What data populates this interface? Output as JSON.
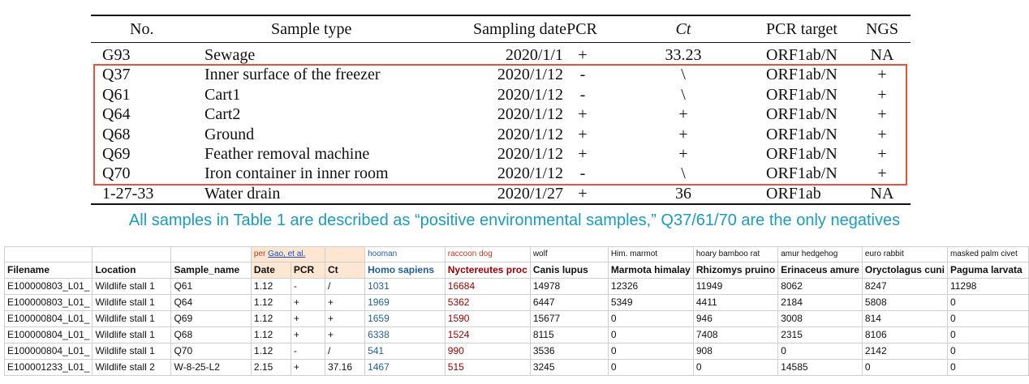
{
  "top_table": {
    "headers": {
      "no": "No.",
      "type": "Sample type",
      "date": "Sampling date",
      "pcr": "PCR",
      "ct": "Ct",
      "target": "PCR target",
      "ngs": "NGS"
    },
    "rows": [
      {
        "no": "G93",
        "type": "Sewage",
        "date": "2020/1/1",
        "pcr": "+",
        "ct": "33.23",
        "target": "ORF1ab/N",
        "ngs": "NA"
      },
      {
        "no": "Q37",
        "type": "Inner surface of the freezer",
        "date": "2020/1/12",
        "pcr": "-",
        "ct": "\\",
        "target": "ORF1ab/N",
        "ngs": "+"
      },
      {
        "no": "Q61",
        "type": "Cart1",
        "date": "2020/1/12",
        "pcr": "-",
        "ct": "\\",
        "target": "ORF1ab/N",
        "ngs": "+"
      },
      {
        "no": "Q64",
        "type": "Cart2",
        "date": "2020/1/12",
        "pcr": "+",
        "ct": "+",
        "target": "ORF1ab/N",
        "ngs": "+"
      },
      {
        "no": "Q68",
        "type": "Ground",
        "date": "2020/1/12",
        "pcr": "+",
        "ct": "+",
        "target": "ORF1ab/N",
        "ngs": "+"
      },
      {
        "no": "Q69",
        "type": "Feather removal machine",
        "date": "2020/1/12",
        "pcr": "+",
        "ct": "+",
        "target": "ORF1ab/N",
        "ngs": "+"
      },
      {
        "no": "Q70",
        "type": "Iron container in inner room",
        "date": "2020/1/12",
        "pcr": "-",
        "ct": "\\",
        "target": "ORF1ab/N",
        "ngs": "+"
      },
      {
        "no": "1-27-33",
        "type": "Water drain",
        "date": "2020/1/27",
        "pcr": "+",
        "ct": "36",
        "target": "ORF1ab",
        "ngs": "NA"
      }
    ],
    "highlight_color": "#e4543c"
  },
  "caption": "All samples in Table 1 are described as “positive environmental samples,” Q37/61/70 are the only negatives",
  "sheet": {
    "group_row": [
      "",
      "",
      "",
      "per ",
      "Gao, et al.",
      "",
      "hooman",
      "raccoon dog",
      "wolf",
      "Him. marmot",
      "hoary bamboo rat",
      "amur hedgehog",
      "euro rabbit",
      "masked palm civet"
    ],
    "headers": [
      "Filename",
      "Location",
      "Sample_name",
      "Date",
      "PCR",
      "Ct",
      "Homo sapiens",
      "Nyctereutes proc",
      "Canis lupus",
      "Marmota himalay",
      "Rhizomys pruino",
      "Erinaceus amure",
      "Oryctolagus cuni",
      "Paguma larvata"
    ],
    "rows": [
      [
        "E100000803_L01_",
        "Wildlife stall 1",
        "Q61",
        "1.12",
        "-",
        "/",
        "1031",
        "16684",
        "14978",
        "12326",
        "11949",
        "8062",
        "8247",
        "11298"
      ],
      [
        "E100000803_L01_",
        "Wildlife stall 1",
        "Q64",
        "1.12",
        "+",
        "+",
        "1969",
        "5362",
        "6447",
        "5349",
        "4411",
        "2184",
        "5808",
        "0"
      ],
      [
        "E100000804_L01_",
        "Wildlife stall 1",
        "Q69",
        "1.12",
        "+",
        "+",
        "1659",
        "1590",
        "15677",
        "0",
        "946",
        "3008",
        "814",
        "0"
      ],
      [
        "E100000804_L01_",
        "Wildlife stall 1",
        "Q68",
        "1.12",
        "+",
        "+",
        "6338",
        "1524",
        "8115",
        "0",
        "7408",
        "2315",
        "8106",
        "0"
      ],
      [
        "E100000804_L01_",
        "Wildlife stall 1",
        "Q70",
        "1.12",
        "-",
        "/",
        "541",
        "990",
        "3536",
        "0",
        "908",
        "0",
        "2142",
        "0"
      ],
      [
        "E100001233_L01_",
        "Wildlife stall 2",
        "W-8-25-L2",
        "2.15",
        "+",
        "37.16",
        "1467",
        "515",
        "3245",
        "0",
        "0",
        "14585",
        "0",
        "0"
      ]
    ]
  }
}
